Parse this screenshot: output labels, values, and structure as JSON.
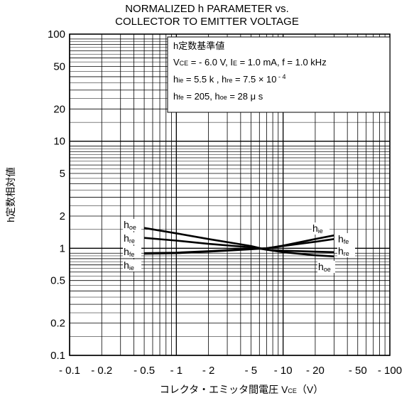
{
  "chart_data": {
    "type": "line",
    "title_line1": "NORMALIZED h PARAMETER vs.",
    "title_line2": "COLLECTOR TO EMITTER VOLTAGE",
    "ylabel": "h定数相対値",
    "xlabel": "コレクタ・エミッタ間電圧",
    "xlabel_symbol": "V",
    "xlabel_sub": "CE",
    "xlabel_unit": "（V）",
    "x_scale": "log",
    "y_scale": "log",
    "xlim": [
      0.1,
      100
    ],
    "ylim": [
      0.1,
      100
    ],
    "grid": true,
    "y_ticks": [
      {
        "value": 100,
        "label": "100"
      },
      {
        "value": 50,
        "label": "50"
      },
      {
        "value": 20,
        "label": "20"
      },
      {
        "value": 10,
        "label": "10"
      },
      {
        "value": 5,
        "label": "5"
      },
      {
        "value": 2,
        "label": "2"
      },
      {
        "value": 1,
        "label": "1"
      },
      {
        "value": 0.5,
        "label": "0.5"
      },
      {
        "value": 0.2,
        "label": "0.2"
      },
      {
        "value": 0.1,
        "label": "0.1"
      }
    ],
    "x_ticks": [
      {
        "value": 0.1,
        "label": "- 0.1"
      },
      {
        "value": 0.2,
        "label": "- 0.2"
      },
      {
        "value": 0.5,
        "label": "- 0.5"
      },
      {
        "value": 1,
        "label": "- 1"
      },
      {
        "value": 2,
        "label": "- 2"
      },
      {
        "value": 5,
        "label": "- 5"
      },
      {
        "value": 10,
        "label": "- 10"
      },
      {
        "value": 20,
        "label": "- 20"
      },
      {
        "value": 50,
        "label": "- 50"
      },
      {
        "value": 100,
        "label": "- 100"
      }
    ],
    "note": {
      "line1": "h定数基準値",
      "line2_parts": [
        "V",
        "CE",
        " =  - 6.0 V, I",
        "E",
        " = 1.0 mA, f = 1.0 kHz"
      ],
      "line3_parts": [
        "h",
        "ie",
        " = 5.5 k   , h",
        "re",
        " = 7.5 × 10",
        " - 4"
      ],
      "line4_parts": [
        "h",
        "fe",
        " = 205, h",
        "oe",
        " = 28 μ s"
      ]
    },
    "series": [
      {
        "name": "hoe",
        "label_main": "h",
        "label_sub": "oe",
        "x": [
          0.5,
          1,
          2,
          5,
          7,
          10,
          20,
          30
        ],
        "y": [
          1.55,
          1.38,
          1.22,
          1.05,
          0.97,
          0.92,
          0.86,
          0.84
        ]
      },
      {
        "name": "hre",
        "label_main": "h",
        "label_sub": "re",
        "x": [
          0.5,
          1,
          2,
          5,
          7,
          10,
          20,
          30
        ],
        "y": [
          1.25,
          1.18,
          1.1,
          1.02,
          0.97,
          0.95,
          0.93,
          0.92
        ]
      },
      {
        "name": "hfe",
        "label_main": "h",
        "label_sub": "fe",
        "x": [
          0.5,
          1,
          2,
          5,
          7,
          10,
          20,
          30
        ],
        "y": [
          0.9,
          0.91,
          0.94,
          0.99,
          1.0,
          1.05,
          1.15,
          1.22
        ]
      },
      {
        "name": "hie",
        "label_main": "h",
        "label_sub": "ie",
        "x": [
          0.5,
          1,
          2,
          5,
          7,
          10,
          20,
          30
        ],
        "y": [
          0.89,
          0.9,
          0.93,
          0.98,
          1.0,
          1.06,
          1.22,
          1.32
        ]
      }
    ],
    "left_labels_order": [
      "hoe",
      "hre",
      "hfe",
      "hie"
    ],
    "right_labels_order": [
      "hie",
      "hfe",
      "hre",
      "hoe"
    ]
  }
}
